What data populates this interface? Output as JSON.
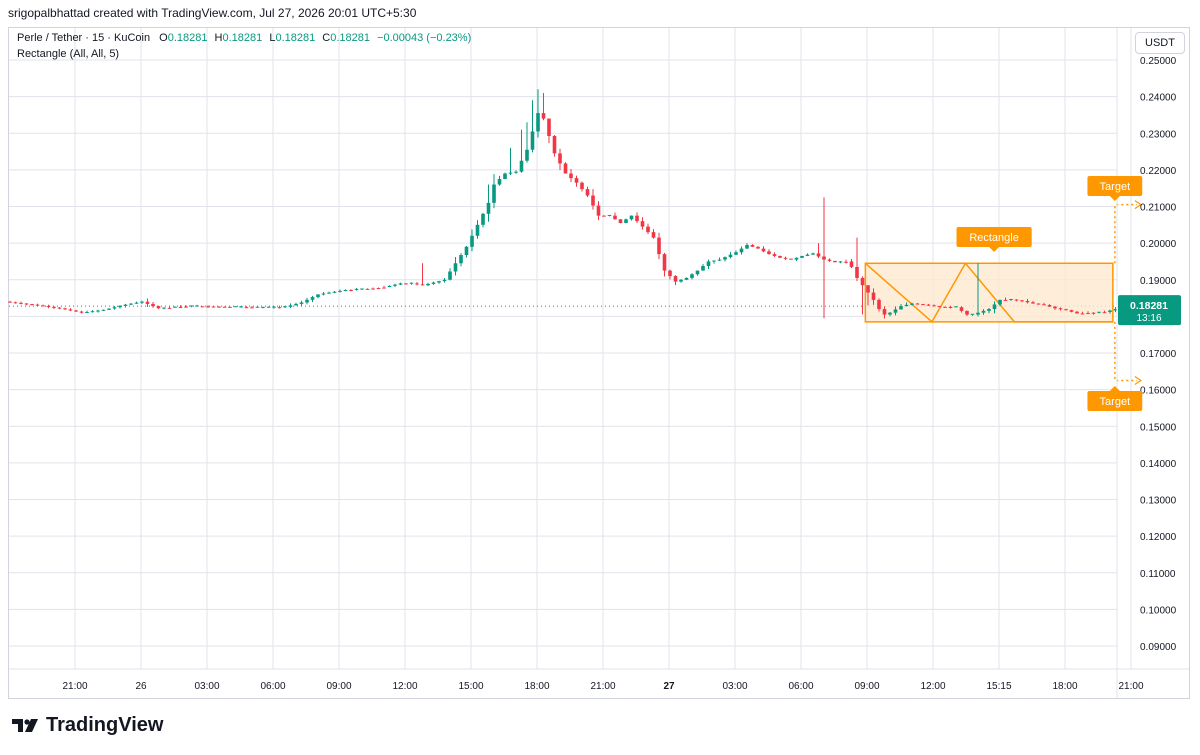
{
  "header": {
    "attribution": "srigopalbhattad created with TradingView.com, Jul 27, 2026 20:01 UTC+5:30"
  },
  "legend": {
    "symbol": "Perle / Tether · 15 · KuCoin",
    "o_label": "O",
    "o_value": "0.18281",
    "h_label": "H",
    "h_value": "0.18281",
    "l_label": "L",
    "l_value": "0.18281",
    "c_label": "C",
    "c_value": "0.18281",
    "change": "−0.00043 (−0.23%)",
    "indicator": "Rectangle (All, All, 5)"
  },
  "currency": "USDT",
  "logo_text": "TradingView",
  "colors": {
    "up": "#089981",
    "down": "#f23645",
    "pattern": "#ff9800",
    "pattern_fill": "#fde9d0",
    "grid": "#e0e3eb"
  },
  "chart_data": {
    "type": "candlestick",
    "interval": "15",
    "exchange": "KuCoin",
    "ylim": [
      0.085,
      0.252
    ],
    "y_ticks": [
      "0.25000",
      "0.24000",
      "0.23000",
      "0.22000",
      "0.21000",
      "0.20000",
      "0.19000",
      "0.18000",
      "0.17000",
      "0.16000",
      "0.15000",
      "0.14000",
      "0.13000",
      "0.12000",
      "0.11000",
      "0.10000",
      "0.09000"
    ],
    "x_ticks": [
      {
        "label": "21:00",
        "t": 14
      },
      {
        "label": "26",
        "t": 26,
        "bold": false
      },
      {
        "label": "03:00",
        "t": 38
      },
      {
        "label": "06:00",
        "t": 50
      },
      {
        "label": "09:00",
        "t": 62
      },
      {
        "label": "12:00",
        "t": 74
      },
      {
        "label": "15:00",
        "t": 86
      },
      {
        "label": "18:00",
        "t": 98
      },
      {
        "label": "21:00",
        "t": 110
      },
      {
        "label": "27",
        "t": 122,
        "bold": true
      },
      {
        "label": "03:00",
        "t": 134
      },
      {
        "label": "06:00",
        "t": 146
      },
      {
        "label": "09:00",
        "t": 158
      },
      {
        "label": "12:00",
        "t": 170
      },
      {
        "label": "15:15",
        "t": 182
      },
      {
        "label": "18:00",
        "t": 194
      },
      {
        "label": "21:00",
        "t": 206
      }
    ],
    "last_price": "0.18281",
    "countdown": "13:16",
    "last_value": 0.18281,
    "pattern": {
      "label": "Rectangle",
      "top": 0.1945,
      "bottom": 0.1785,
      "t_start": 157.7,
      "t_end": 202.7,
      "zigzag": [
        [
          157.7,
          0.1945
        ],
        [
          169.8,
          0.1785
        ],
        [
          175.9,
          0.1945
        ],
        [
          184.8,
          0.1785
        ],
        [
          202.7,
          0.1785
        ]
      ],
      "targets": [
        {
          "label": "Target",
          "value": 0.2105
        },
        {
          "label": "Target",
          "value": 0.1625
        }
      ]
    },
    "anchors": [
      [
        0,
        0.184
      ],
      [
        5,
        0.1832
      ],
      [
        10,
        0.1822
      ],
      [
        14,
        0.181
      ],
      [
        18,
        0.1818
      ],
      [
        22,
        0.1832
      ],
      [
        25,
        0.184
      ],
      [
        28,
        0.1822
      ],
      [
        33,
        0.1828
      ],
      [
        40,
        0.1826
      ],
      [
        46,
        0.1824
      ],
      [
        51,
        0.1826
      ],
      [
        54,
        0.1838
      ],
      [
        57,
        0.186
      ],
      [
        62,
        0.1872
      ],
      [
        66,
        0.1876
      ],
      [
        69,
        0.188
      ],
      [
        72,
        0.189
      ],
      [
        74,
        0.189
      ],
      [
        76,
        0.1885
      ],
      [
        80,
        0.19
      ],
      [
        84,
        0.199
      ],
      [
        87,
        0.208
      ],
      [
        88,
        0.211
      ],
      [
        89,
        0.216
      ],
      [
        91,
        0.219
      ],
      [
        93,
        0.2195
      ],
      [
        95,
        0.2255
      ],
      [
        97,
        0.2355
      ],
      [
        98,
        0.234
      ],
      [
        100,
        0.2245
      ],
      [
        102,
        0.219
      ],
      [
        104,
        0.2165
      ],
      [
        106,
        0.213
      ],
      [
        108,
        0.2075
      ],
      [
        110,
        0.2075
      ],
      [
        112,
        0.2055
      ],
      [
        114,
        0.2075
      ],
      [
        116,
        0.2045
      ],
      [
        118,
        0.2015
      ],
      [
        120,
        0.1925
      ],
      [
        122,
        0.1895
      ],
      [
        124,
        0.1905
      ],
      [
        126,
        0.1925
      ],
      [
        128,
        0.195
      ],
      [
        130,
        0.1955
      ],
      [
        133,
        0.1975
      ],
      [
        135,
        0.1995
      ],
      [
        137,
        0.1985
      ],
      [
        139,
        0.197
      ],
      [
        141,
        0.196
      ],
      [
        143,
        0.1955
      ],
      [
        145,
        0.1965
      ],
      [
        147,
        0.1972
      ],
      [
        149,
        0.1955
      ],
      [
        151,
        0.1948
      ],
      [
        153,
        0.195
      ],
      [
        154,
        0.1935
      ],
      [
        155,
        0.1905
      ],
      [
        156,
        0.1885
      ],
      [
        157,
        0.1865
      ],
      [
        158,
        0.1845
      ],
      [
        159,
        0.182
      ],
      [
        160,
        0.1805
      ],
      [
        161,
        0.181
      ],
      [
        163,
        0.1828
      ],
      [
        165,
        0.1835
      ],
      [
        167,
        0.1832
      ],
      [
        170,
        0.1826
      ],
      [
        173,
        0.1825
      ],
      [
        175,
        0.1805
      ],
      [
        176,
        0.1805
      ],
      [
        179,
        0.182
      ],
      [
        181,
        0.1845
      ],
      [
        183,
        0.1846
      ],
      [
        185,
        0.1842
      ],
      [
        187,
        0.1835
      ],
      [
        189,
        0.1831
      ],
      [
        191,
        0.1822
      ],
      [
        193,
        0.1817
      ],
      [
        195,
        0.1808
      ],
      [
        197,
        0.181
      ],
      [
        200,
        0.1812
      ],
      [
        202,
        0.182
      ],
      [
        205,
        0.1848
      ],
      [
        207,
        0.1845
      ],
      [
        209,
        0.1828
      ]
    ]
  }
}
